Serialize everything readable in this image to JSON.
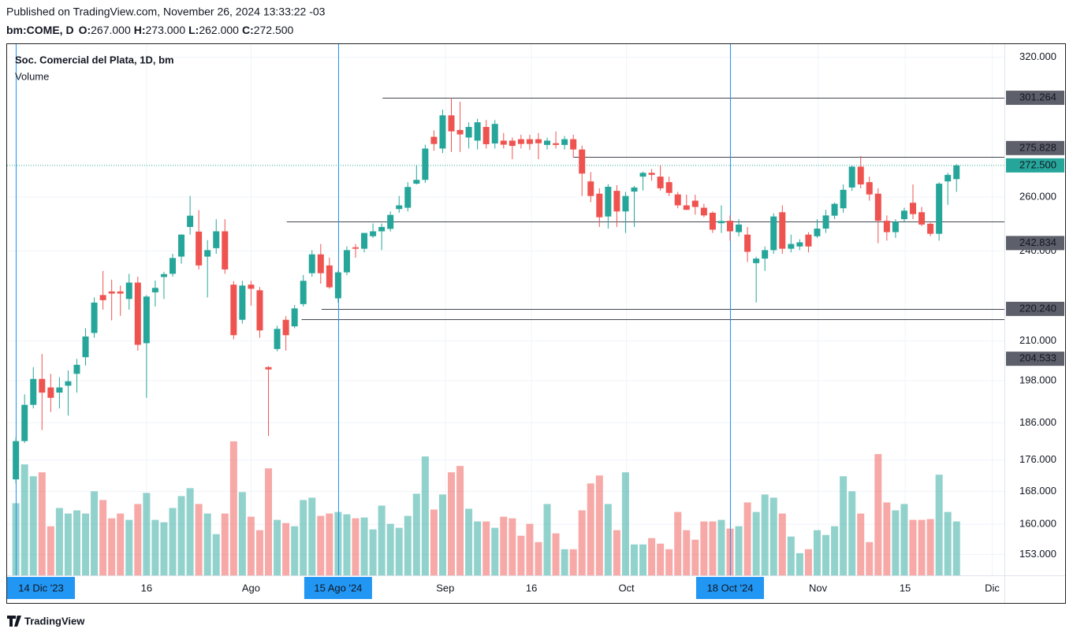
{
  "header": {
    "published": "Published on TradingView.com, November 26, 2024 13:33:22 -03",
    "symbol": "bm:COME, D",
    "ohlc": [
      {
        "key": "O:",
        "value": "267.000"
      },
      {
        "key": "H:",
        "value": "273.000"
      },
      {
        "key": "L:",
        "value": "262.000"
      },
      {
        "key": "C:",
        "value": "272.500"
      }
    ]
  },
  "chart_data": {
    "type": "candlestick",
    "title": "Soc. Comercial del Plata, 1D, bm",
    "volume_label": "Volume",
    "log_scale": true,
    "ylim": [
      148.3,
      326.6
    ],
    "yticks": [
      {
        "value": 320,
        "label": "320.000"
      },
      {
        "value": 260,
        "label": "260.000"
      },
      {
        "value": 240,
        "label": "240.000"
      },
      {
        "value": 210,
        "label": "210.000"
      },
      {
        "value": 198,
        "label": "198.000"
      },
      {
        "value": 186,
        "label": "186.000"
      },
      {
        "value": 176,
        "label": "176.000"
      },
      {
        "value": 168,
        "label": "168.000"
      },
      {
        "value": 160,
        "label": "160.000"
      },
      {
        "value": 153,
        "label": "153.000"
      }
    ],
    "xlim": [
      -1.1,
      113.5
    ],
    "xticks": [
      {
        "value": 0,
        "label": "14 Dic '23",
        "highlight": true
      },
      {
        "value": 15,
        "label": "16"
      },
      {
        "value": 27,
        "label": "Ago"
      },
      {
        "value": 37,
        "label": "15 Ago '24",
        "highlight": true
      },
      {
        "value": 49.3,
        "label": "Sep"
      },
      {
        "value": 59.2,
        "label": "16"
      },
      {
        "value": 70.1,
        "label": "Oct"
      },
      {
        "value": 82,
        "label": "18 Oct '24",
        "highlight": true
      },
      {
        "value": 92.1,
        "label": "Nov"
      },
      {
        "value": 102.1,
        "label": "15"
      },
      {
        "value": 112.1,
        "label": "Dic"
      }
    ],
    "open": [
      171,
      181,
      191,
      198.5,
      196,
      194.5,
      196.5,
      200,
      205,
      212.5,
      224.8,
      226,
      226,
      223.5,
      229,
      209.3,
      225.7,
      230.9,
      232,
      238,
      248.7,
      247,
      238,
      241,
      247.1,
      228.3,
      216.7,
      228.3,
      226.4,
      202,
      207.5,
      216.7,
      214.6,
      221.8,
      232.2,
      238.8,
      234.9,
      223.7,
      232.5,
      241.3,
      240.8,
      245.3,
      247.1,
      248,
      255.4,
      255.9,
      265.2,
      266.7,
      284.3,
      279.4,
      293.5,
      287.2,
      284,
      282.7,
      288.5,
      281.5,
      282.7,
      282.7,
      283.3,
      283.3,
      283.3,
      280.9,
      281.6,
      280.9,
      283.3,
      279,
      266.1,
      261.3,
      252.6,
      262.4,
      254.5,
      262.1,
      268,
      269.5,
      268,
      265.8,
      261,
      256.8,
      258.6,
      255.9,
      254,
      250.1,
      251,
      246.8,
      245.9,
      235.7,
      237.3,
      240.3,
      254.2,
      240.8,
      241.6,
      245.9,
      245.3,
      248.1,
      252.9,
      255.7,
      263.7,
      272,
      265.8,
      261.3,
      251,
      246.8,
      251.6,
      257.8,
      254.2,
      249.9,
      246.2,
      266.1,
      267
    ],
    "high": [
      182,
      194,
      202,
      206,
      200,
      199,
      201,
      204.5,
      214,
      224,
      233,
      230,
      228,
      232,
      231,
      224.8,
      229.7,
      232.7,
      239,
      246,
      260.4,
      255,
      243.9,
      251.6,
      251.6,
      229.5,
      229.6,
      229.6,
      227.5,
      202.3,
      214.8,
      217.9,
      221.5,
      231.6,
      240.3,
      242.5,
      237.6,
      233,
      241.6,
      242.5,
      246.5,
      250,
      250,
      254.5,
      260.4,
      265.8,
      272.6,
      281,
      287,
      296,
      301.3,
      299.5,
      290.5,
      292,
      291.5,
      291.5,
      285.9,
      284,
      285.2,
      285.2,
      285.9,
      284,
      286.6,
      284.6,
      285.2,
      280.6,
      269.8,
      263.4,
      265,
      264.6,
      262,
      264.3,
      270,
      271,
      272.6,
      268,
      262,
      260.9,
      260.9,
      257.4,
      254.5,
      256.8,
      253,
      251.6,
      248.7,
      238,
      241.6,
      253.8,
      256.8,
      245.9,
      244.2,
      246.8,
      251.6,
      255.1,
      257.9,
      264.9,
      272.6,
      276.3,
      268,
      263.4,
      253,
      251.6,
      255.9,
      264.9,
      256.2,
      250.3,
      265.8,
      269.5,
      273
    ],
    "low": [
      170,
      180.5,
      190,
      184,
      189,
      190,
      188,
      194.5,
      202.5,
      211,
      220,
      216.5,
      218,
      220,
      207,
      193,
      221,
      223.5,
      231,
      235.5,
      245.9,
      233.5,
      224,
      239,
      232,
      210.5,
      215.5,
      221.3,
      211,
      182.4,
      206.8,
      207,
      214,
      221,
      231,
      228.6,
      226.9,
      222.3,
      231.5,
      237.6,
      239.5,
      244.7,
      240.3,
      247,
      254,
      254.5,
      264.9,
      265.5,
      278.5,
      277.5,
      278,
      278,
      279.4,
      279,
      279.4,
      279.4,
      279.4,
      275,
      279.4,
      278.8,
      275,
      279,
      279.4,
      279,
      275.7,
      260.4,
      258,
      248.7,
      248.1,
      248.7,
      246.5,
      248.7,
      262.5,
      266.4,
      262.5,
      260.4,
      255.7,
      255.1,
      253.3,
      252.3,
      246.5,
      246.5,
      243.7,
      245.3,
      236.1,
      222.3,
      233,
      239,
      239,
      239.5,
      240.3,
      239.5,
      244.7,
      246.5,
      251.6,
      254,
      262.4,
      263.4,
      258.6,
      242.8,
      243.7,
      244.7,
      250.6,
      251.6,
      249,
      245.3,
      243.7,
      257,
      262
    ],
    "close": [
      181,
      191,
      198.5,
      194.5,
      193,
      196,
      197.8,
      202.7,
      211.4,
      222.3,
      223.1,
      225.3,
      225.3,
      229,
      208.8,
      224.3,
      227.2,
      231.9,
      237.5,
      245.9,
      252.9,
      234.9,
      240.3,
      247.1,
      233.5,
      211.8,
      228,
      226.9,
      213.3,
      201.3,
      213.8,
      211.8,
      220.4,
      229.6,
      238.8,
      232.2,
      227.4,
      232.5,
      240.3,
      240.8,
      246.5,
      247.1,
      248.7,
      253.2,
      256.8,
      263.9,
      266.7,
      279.4,
      281.3,
      293.5,
      286.6,
      285.3,
      288.5,
      290.5,
      281.2,
      289.8,
      281,
      280.5,
      281.3,
      281.3,
      281.6,
      282.7,
      280.9,
      283.3,
      279,
      269.2,
      260.4,
      252.3,
      264,
      254.5,
      260.4,
      263.7,
      269.5,
      268.7,
      263.4,
      261.6,
      256.8,
      255.1,
      256.2,
      253,
      247.7,
      250.9,
      247.1,
      249.6,
      239.7,
      237.3,
      240.3,
      252.6,
      240.8,
      242.5,
      243.1,
      241.6,
      248.1,
      253,
      257.4,
      262.8,
      272,
      264.9,
      261,
      251,
      246.8,
      250.6,
      254.8,
      253.5,
      249.6,
      246.2,
      265.2,
      268.7,
      272.5
    ],
    "volume": [
      91,
      140,
      125,
      130,
      62,
      85,
      78,
      82,
      78,
      106,
      95,
      72,
      78,
      70,
      90,
      104,
      70,
      67,
      85,
      100,
      110,
      90,
      78,
      52,
      78,
      169,
      105,
      74,
      57,
      135,
      70,
      66,
      62,
      95,
      98,
      75,
      78,
      80,
      77,
      72,
      73,
      58,
      88,
      65,
      60,
      75,
      103,
      150,
      83,
      102,
      130,
      138,
      84,
      68,
      68,
      60,
      74,
      72,
      50,
      65,
      42,
      90,
      53,
      33,
      33,
      82,
      116,
      126,
      90,
      57,
      130,
      39,
      39,
      47,
      40,
      33,
      80,
      57,
      45,
      68,
      68,
      70,
      59,
      62,
      92,
      80,
      102,
      98,
      78,
      49,
      28,
      33,
      57,
      51,
      62,
      125,
      106,
      78,
      42,
      153,
      92,
      82,
      90,
      70,
      70,
      71,
      127,
      80,
      68
    ],
    "up_color": "#26a69a",
    "down_color": "#ef5350",
    "last_price": {
      "value": 272.5,
      "label": "272.500"
    },
    "levels": [
      {
        "value": 301.264,
        "label": "301.264",
        "from": 42.1
      },
      {
        "value": 275.828,
        "label": "275.828",
        "from": 64
      },
      {
        "value": 220.24,
        "label": "220.240",
        "from": 35.1
      }
    ],
    "unlabeled_levels": [
      {
        "value": 250.6,
        "from": 31.1
      },
      {
        "value": 216.8,
        "from": 32.8
      }
    ],
    "scale_labels": [
      {
        "value": 242.834,
        "label": "242.834"
      },
      {
        "value": 204.533,
        "label": "204.533"
      }
    ]
  },
  "footer": {
    "brand": "TradingView"
  }
}
